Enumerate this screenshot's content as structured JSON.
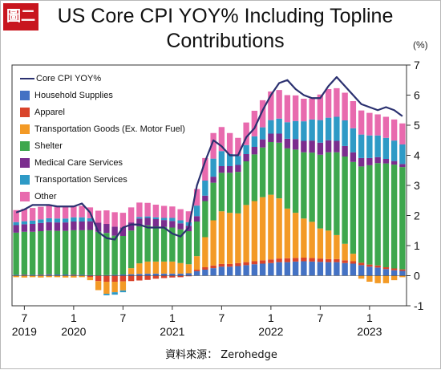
{
  "badge": "圖二",
  "source": "資料來源： Zerohedge",
  "chart_data": {
    "type": "bar",
    "title": "US Core CPI YOY% Including Topline Contributions",
    "unit_label": "(%)",
    "ylim": [
      -1,
      7
    ],
    "yticks": [
      -1,
      0,
      1,
      2,
      3,
      4,
      5,
      6,
      7
    ],
    "x_ticks": [
      {
        "month": "7",
        "year": "2019",
        "index": 1
      },
      {
        "month": "1",
        "year": "2020",
        "index": 7
      },
      {
        "month": "7",
        "year": "",
        "index": 13
      },
      {
        "month": "1",
        "year": "2021",
        "index": 19
      },
      {
        "month": "7",
        "year": "",
        "index": 25
      },
      {
        "month": "1",
        "year": "2022",
        "index": 31
      },
      {
        "month": "7",
        "year": "",
        "index": 37
      },
      {
        "month": "1",
        "year": "2023",
        "index": 43
      }
    ],
    "categories": [
      "2019-06",
      "2019-07",
      "2019-08",
      "2019-09",
      "2019-10",
      "2019-11",
      "2019-12",
      "2020-01",
      "2020-02",
      "2020-03",
      "2020-04",
      "2020-05",
      "2020-06",
      "2020-07",
      "2020-08",
      "2020-09",
      "2020-10",
      "2020-11",
      "2020-12",
      "2021-01",
      "2021-02",
      "2021-03",
      "2021-04",
      "2021-05",
      "2021-06",
      "2021-07",
      "2021-08",
      "2021-09",
      "2021-10",
      "2021-11",
      "2021-12",
      "2022-01",
      "2022-02",
      "2022-03",
      "2022-04",
      "2022-05",
      "2022-06",
      "2022-07",
      "2022-08",
      "2022-09",
      "2022-10",
      "2022-11",
      "2022-12",
      "2023-01",
      "2023-02",
      "2023-03",
      "2023-04",
      "2023-05"
    ],
    "series": [
      {
        "name": "Household Supplies",
        "color": "#4472c4",
        "values": [
          0.03,
          0.03,
          0.03,
          0.03,
          0.04,
          0.04,
          0.04,
          0.03,
          0.03,
          0.02,
          0.01,
          0.02,
          0.03,
          0.04,
          0.05,
          0.06,
          0.07,
          0.07,
          0.07,
          0.07,
          0.07,
          0.08,
          0.15,
          0.2,
          0.25,
          0.3,
          0.3,
          0.32,
          0.35,
          0.38,
          0.4,
          0.42,
          0.45,
          0.45,
          0.47,
          0.48,
          0.47,
          0.46,
          0.45,
          0.45,
          0.42,
          0.4,
          0.35,
          0.3,
          0.27,
          0.22,
          0.18,
          0.16
        ]
      },
      {
        "name": "Apparel",
        "color": "#d9442b",
        "values": [
          0.0,
          0.01,
          0.0,
          0.01,
          0.01,
          0.0,
          0.0,
          0.01,
          0.0,
          -0.05,
          -0.18,
          -0.2,
          -0.2,
          -0.19,
          -0.18,
          -0.16,
          -0.14,
          -0.1,
          -0.08,
          -0.06,
          -0.05,
          -0.02,
          0.05,
          0.08,
          0.09,
          0.09,
          0.09,
          0.1,
          0.1,
          0.1,
          0.11,
          0.12,
          0.12,
          0.13,
          0.12,
          0.12,
          0.12,
          0.11,
          0.1,
          0.1,
          0.09,
          0.08,
          0.08,
          0.07,
          0.07,
          0.06,
          0.06,
          0.05
        ]
      },
      {
        "name": "Transportation Goods (Ex. Motor Fuel)",
        "color": "#f39a26",
        "values": [
          -0.05,
          -0.06,
          -0.05,
          -0.06,
          -0.05,
          -0.05,
          -0.06,
          -0.06,
          -0.05,
          -0.1,
          -0.3,
          -0.4,
          -0.35,
          -0.3,
          0.2,
          0.35,
          0.4,
          0.4,
          0.4,
          0.4,
          0.35,
          0.3,
          0.45,
          1.0,
          1.5,
          1.75,
          1.7,
          1.65,
          1.9,
          2.0,
          2.1,
          2.15,
          2.0,
          1.65,
          1.5,
          1.3,
          1.2,
          1.0,
          0.95,
          0.8,
          0.55,
          0.25,
          -0.1,
          -0.2,
          -0.25,
          -0.25,
          -0.15,
          -0.05
        ]
      },
      {
        "name": "Shelter",
        "color": "#3ea74d",
        "values": [
          1.4,
          1.42,
          1.43,
          1.44,
          1.45,
          1.45,
          1.45,
          1.47,
          1.48,
          1.5,
          1.45,
          1.4,
          1.3,
          1.28,
          1.25,
          1.23,
          1.2,
          1.17,
          1.15,
          1.13,
          1.12,
          1.1,
          1.15,
          1.2,
          1.25,
          1.28,
          1.33,
          1.38,
          1.45,
          1.55,
          1.65,
          1.75,
          1.85,
          2.0,
          2.1,
          2.2,
          2.3,
          2.45,
          2.6,
          2.75,
          2.9,
          3.05,
          3.2,
          3.3,
          3.4,
          3.45,
          3.45,
          3.4
        ]
      },
      {
        "name": "Medical Care Services",
        "color": "#7b2d8e",
        "values": [
          0.25,
          0.25,
          0.26,
          0.27,
          0.28,
          0.28,
          0.28,
          0.29,
          0.29,
          0.29,
          0.3,
          0.3,
          0.3,
          0.28,
          0.27,
          0.26,
          0.25,
          0.24,
          0.23,
          0.22,
          0.2,
          0.18,
          0.18,
          0.18,
          0.2,
          0.22,
          0.22,
          0.23,
          0.24,
          0.25,
          0.27,
          0.28,
          0.3,
          0.32,
          0.35,
          0.38,
          0.4,
          0.4,
          0.4,
          0.38,
          0.35,
          0.32,
          0.28,
          0.24,
          0.2,
          0.15,
          0.12,
          0.1
        ]
      },
      {
        "name": "Transportation Services",
        "color": "#2e9ac6",
        "values": [
          0.1,
          0.1,
          0.11,
          0.12,
          0.13,
          0.13,
          0.13,
          0.14,
          0.14,
          0.1,
          0.0,
          -0.05,
          -0.08,
          -0.06,
          0.0,
          0.05,
          0.05,
          0.06,
          0.07,
          0.1,
          0.1,
          0.12,
          0.35,
          0.5,
          0.6,
          0.5,
          0.4,
          0.3,
          0.3,
          0.35,
          0.4,
          0.45,
          0.5,
          0.55,
          0.6,
          0.65,
          0.7,
          0.75,
          0.75,
          0.8,
          0.85,
          0.8,
          0.78,
          0.75,
          0.72,
          0.7,
          0.68,
          0.65
        ]
      },
      {
        "name": "Other",
        "color": "#e86aae",
        "values": [
          0.4,
          0.41,
          0.42,
          0.42,
          0.42,
          0.4,
          0.4,
          0.39,
          0.38,
          0.36,
          0.4,
          0.45,
          0.48,
          0.49,
          0.5,
          0.48,
          0.45,
          0.42,
          0.4,
          0.38,
          0.37,
          0.36,
          0.55,
          0.75,
          0.85,
          0.8,
          0.7,
          0.6,
          0.75,
          0.85,
          0.9,
          0.95,
          0.95,
          0.9,
          0.85,
          0.75,
          0.7,
          0.85,
          0.95,
          0.95,
          0.92,
          0.9,
          0.8,
          0.75,
          0.7,
          0.7,
          0.7,
          0.7
        ]
      }
    ],
    "line": {
      "name": "Core CPI YOY%",
      "color": "#2b3170",
      "values": [
        2.1,
        2.2,
        2.35,
        2.35,
        2.35,
        2.3,
        2.3,
        2.3,
        2.4,
        2.1,
        1.45,
        1.25,
        1.2,
        1.6,
        1.7,
        1.7,
        1.6,
        1.6,
        1.6,
        1.4,
        1.3,
        1.6,
        3.0,
        3.8,
        4.5,
        4.3,
        4.0,
        4.0,
        4.6,
        4.9,
        5.5,
        6.0,
        6.4,
        6.5,
        6.2,
        6.0,
        5.9,
        5.9,
        6.3,
        6.6,
        6.3,
        6.0,
        5.7,
        5.6,
        5.5,
        5.6,
        5.5,
        5.3
      ]
    },
    "legend_position": "top-left",
    "grid": false
  }
}
